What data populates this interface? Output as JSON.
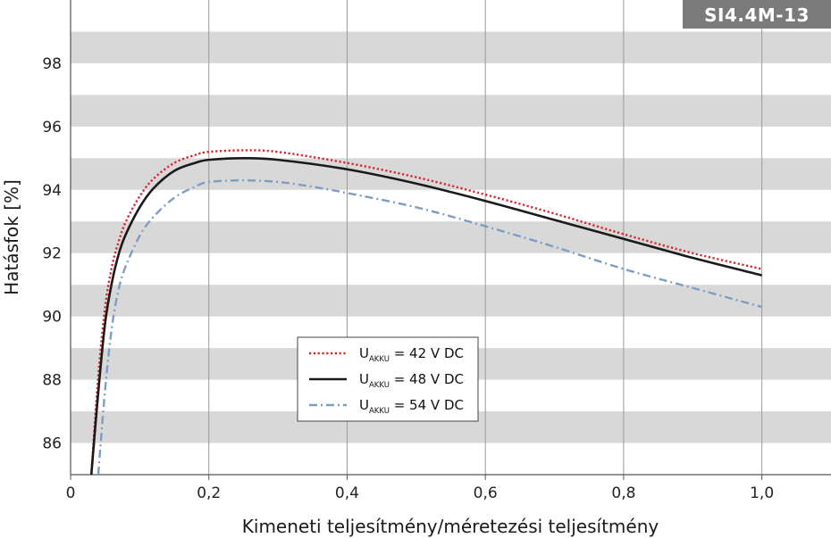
{
  "chart_data": {
    "type": "line",
    "badge": "SI4.4M-13",
    "xlabel": "Kimeneti teljesítmény/méretezési teljesítmény",
    "ylabel": "Hatásfok [%]",
    "xlim": [
      0,
      1.1
    ],
    "ylim": [
      85,
      100
    ],
    "x_ticks": [
      0,
      0.2,
      0.4,
      0.6,
      0.8,
      1.0
    ],
    "x_tick_labels": [
      "0",
      "0,2",
      "0,4",
      "0,6",
      "0,8",
      "1,0"
    ],
    "y_ticks": [
      86,
      88,
      90,
      92,
      94,
      96,
      98
    ],
    "y_tick_labels": [
      "86",
      "88",
      "90",
      "92",
      "94",
      "96",
      "98"
    ],
    "grid": "vertical lines and alternating horizontal bands",
    "legend_position": "center-bottom",
    "series": [
      {
        "name_main": "U",
        "name_sub": "AKKU",
        "name_rest": " = 42 V DC",
        "color": "#d9242b",
        "style": "dotted",
        "x": [
          0.03,
          0.04,
          0.05,
          0.06,
          0.07,
          0.08,
          0.1,
          0.12,
          0.15,
          0.18,
          0.2,
          0.25,
          0.3,
          0.4,
          0.5,
          0.6,
          0.7,
          0.8,
          0.9,
          1.0
        ],
        "y": [
          85.0,
          88.1,
          90.3,
          91.6,
          92.4,
          93.0,
          93.8,
          94.35,
          94.85,
          95.1,
          95.2,
          95.25,
          95.2,
          94.85,
          94.4,
          93.85,
          93.25,
          92.6,
          92.0,
          91.5
        ]
      },
      {
        "name_main": "U",
        "name_sub": "AKKU",
        "name_rest": " = 48 V DC",
        "color": "#1a1a1a",
        "style": "solid",
        "x": [
          0.03,
          0.04,
          0.05,
          0.06,
          0.07,
          0.08,
          0.1,
          0.12,
          0.15,
          0.18,
          0.2,
          0.25,
          0.3,
          0.4,
          0.5,
          0.6,
          0.7,
          0.8,
          0.9,
          1.0
        ],
        "y": [
          85.0,
          87.6,
          89.8,
          91.1,
          92.0,
          92.6,
          93.45,
          94.05,
          94.6,
          94.85,
          94.95,
          95.0,
          94.95,
          94.65,
          94.2,
          93.65,
          93.05,
          92.45,
          91.85,
          91.3
        ]
      },
      {
        "name_main": "U",
        "name_sub": "AKKU",
        "name_rest": " = 54 V DC",
        "color": "#7f9cc3",
        "style": "dashdot",
        "x": [
          0.04,
          0.05,
          0.06,
          0.07,
          0.08,
          0.1,
          0.12,
          0.15,
          0.18,
          0.2,
          0.25,
          0.3,
          0.35,
          0.4,
          0.5,
          0.6,
          0.7,
          0.8,
          0.9,
          1.0
        ],
        "y": [
          85.0,
          87.7,
          89.7,
          90.9,
          91.6,
          92.55,
          93.15,
          93.75,
          94.1,
          94.25,
          94.3,
          94.25,
          94.1,
          93.9,
          93.45,
          92.85,
          92.2,
          91.5,
          90.9,
          90.3
        ]
      }
    ]
  }
}
